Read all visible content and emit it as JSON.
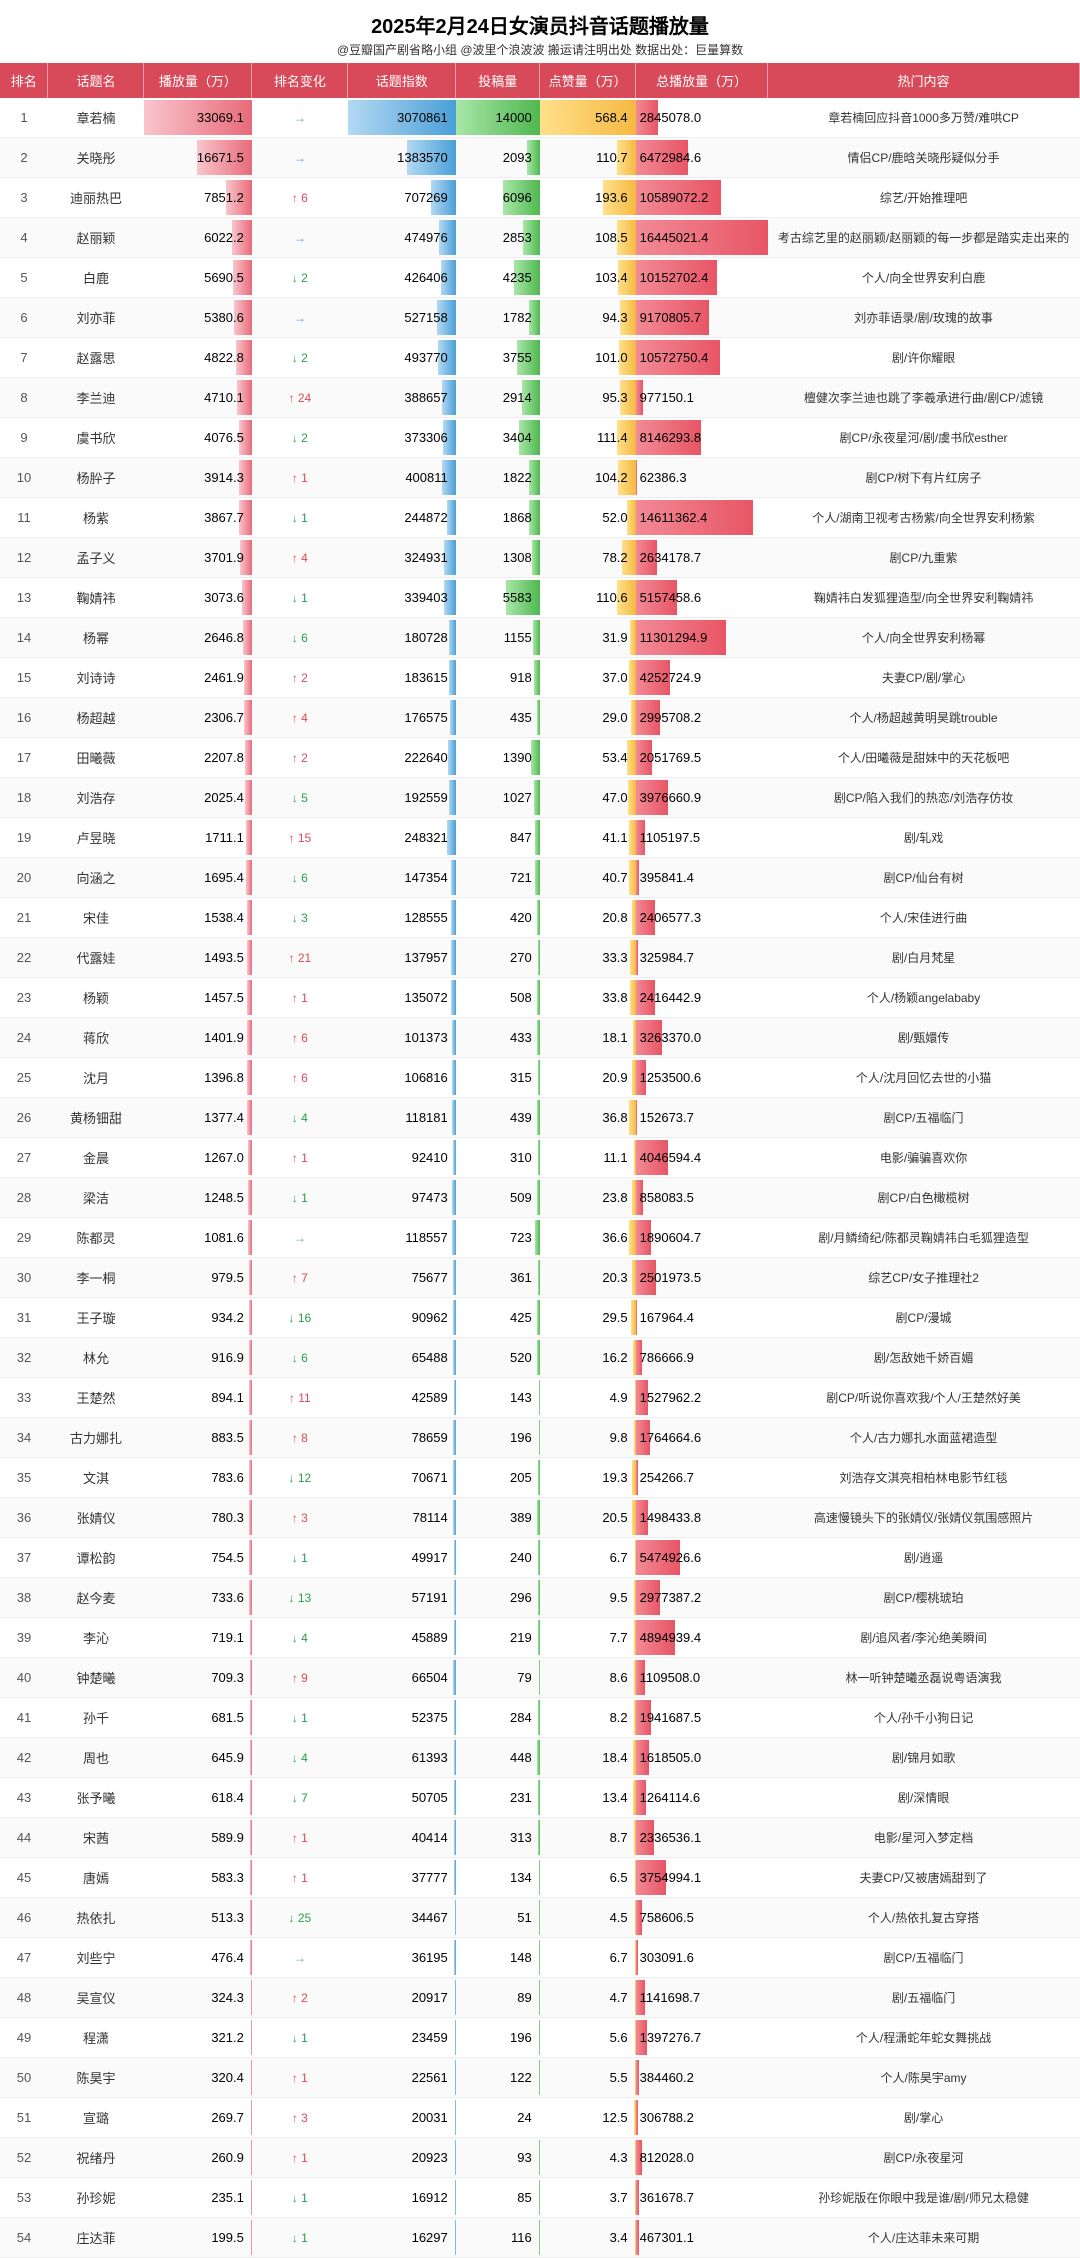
{
  "header": {
    "title": "2025年2月24日女演员抖音话题播放量",
    "subtitle": "@豆瓣国产剧省略小组 @波里个浪波波 搬运请注明出处 数据出处：巨量算数"
  },
  "columns": [
    "排名",
    "话题名",
    "播放量（万）",
    "排名变化",
    "话题指数",
    "投稿量",
    "点赞量（万）",
    "总播放量（万）",
    "热门内容"
  ],
  "styling": {
    "header_bg": "#d84a5a",
    "header_text": "#ffffff",
    "play_bar_color": "linear-gradient(90deg,#f9c5cc,#e86b7a)",
    "index_bar_color": "linear-gradient(90deg,#b3d9f2,#4a9fd8)",
    "post_bar_color": "linear-gradient(90deg,#a8e6a8,#4fb84f)",
    "like_bar_color": "linear-gradient(90deg,#ffe08a,#f5b942)",
    "total_bar_color": "linear-gradient(90deg,#f28a96,#e85565)",
    "up_color": "#d84a5a",
    "down_color": "#2e9b4f",
    "flat_color": "#5a8fd6",
    "font_size_body": 13,
    "font_size_title": 20,
    "max_play": 33069.1,
    "max_index": 3070861,
    "max_post": 14000,
    "max_like": 568.4,
    "max_total": 16445021.4
  },
  "rows": [
    {
      "rank": 1,
      "name": "章若楠",
      "play": 33069.1,
      "change": "→",
      "index": 3070861,
      "post": 14000,
      "like": 568.4,
      "total": 2845078.0,
      "hot": "章若楠回应抖音1000多万赞/难哄CP"
    },
    {
      "rank": 2,
      "name": "关晓彤",
      "play": 16671.5,
      "change": "→",
      "index": 1383570,
      "post": 2093,
      "like": 110.7,
      "total": 6472984.6,
      "hot": "情侣CP/鹿晗关晓彤疑似分手"
    },
    {
      "rank": 3,
      "name": "迪丽热巴",
      "play": 7851.2,
      "change": "↑6",
      "index": 707269,
      "post": 6096,
      "like": 193.6,
      "total": 10589072.2,
      "hot": "综艺/开始推理吧"
    },
    {
      "rank": 4,
      "name": "赵丽颖",
      "play": 6022.2,
      "change": "→",
      "index": 474976,
      "post": 2853,
      "like": 108.5,
      "total": 16445021.4,
      "hot": "考古综艺里的赵丽颖/赵丽颖的每一步都是踏实走出来的"
    },
    {
      "rank": 5,
      "name": "白鹿",
      "play": 5690.5,
      "change": "↓2",
      "index": 426406,
      "post": 4235,
      "like": 103.4,
      "total": 10152702.4,
      "hot": "个人/向全世界安利白鹿"
    },
    {
      "rank": 6,
      "name": "刘亦菲",
      "play": 5380.6,
      "change": "→",
      "index": 527158,
      "post": 1782,
      "like": 94.3,
      "total": 9170805.7,
      "hot": "刘亦菲语录/剧/玫瑰的故事"
    },
    {
      "rank": 7,
      "name": "赵露思",
      "play": 4822.8,
      "change": "↓2",
      "index": 493770,
      "post": 3755,
      "like": 101.0,
      "total": 10572750.4,
      "hot": "剧/许你耀眼"
    },
    {
      "rank": 8,
      "name": "李兰迪",
      "play": 4710.1,
      "change": "↑24",
      "index": 388657,
      "post": 2914,
      "like": 95.3,
      "total": 977150.1,
      "hot": "檀健次李兰迪也跳了李羲承进行曲/剧CP/滤镜"
    },
    {
      "rank": 9,
      "name": "虞书欣",
      "play": 4076.5,
      "change": "↓2",
      "index": 373306,
      "post": 3404,
      "like": 111.4,
      "total": 8146293.8,
      "hot": "剧CP/永夜星河/剧/虞书欣esther"
    },
    {
      "rank": 10,
      "name": "杨肸子",
      "play": 3914.3,
      "change": "↑1",
      "index": 400811,
      "post": 1822,
      "like": 104.2,
      "total": 62386.3,
      "hot": "剧CP/树下有片红房子"
    },
    {
      "rank": 11,
      "name": "杨紫",
      "play": 3867.7,
      "change": "↓1",
      "index": 244872,
      "post": 1868,
      "like": 52.0,
      "total": 14611362.4,
      "hot": "个人/湖南卫视考古杨紫/向全世界安利杨紫"
    },
    {
      "rank": 12,
      "name": "孟子义",
      "play": 3701.9,
      "change": "↑4",
      "index": 324931,
      "post": 1308,
      "like": 78.2,
      "total": 2634178.7,
      "hot": "剧CP/九重紫"
    },
    {
      "rank": 13,
      "name": "鞠婧祎",
      "play": 3073.6,
      "change": "↓1",
      "index": 339403,
      "post": 5583,
      "like": 110.6,
      "total": 5157458.6,
      "hot": "鞠婧祎白发狐狸造型/向全世界安利鞠婧祎"
    },
    {
      "rank": 14,
      "name": "杨幂",
      "play": 2646.8,
      "change": "↓6",
      "index": 180728,
      "post": 1155,
      "like": 31.9,
      "total": 11301294.9,
      "hot": "个人/向全世界安利杨幂"
    },
    {
      "rank": 15,
      "name": "刘诗诗",
      "play": 2461.9,
      "change": "↑2",
      "index": 183615,
      "post": 918,
      "like": 37.0,
      "total": 4252724.9,
      "hot": "夫妻CP/剧/掌心"
    },
    {
      "rank": 16,
      "name": "杨超越",
      "play": 2306.7,
      "change": "↑4",
      "index": 176575,
      "post": 435,
      "like": 29.0,
      "total": 2995708.2,
      "hot": "个人/杨超越黄明昊跳trouble"
    },
    {
      "rank": 17,
      "name": "田曦薇",
      "play": 2207.8,
      "change": "↑2",
      "index": 222640,
      "post": 1390,
      "like": 53.4,
      "total": 2051769.5,
      "hot": "个人/田曦薇是甜妹中的天花板吧"
    },
    {
      "rank": 18,
      "name": "刘浩存",
      "play": 2025.4,
      "change": "↓5",
      "index": 192559,
      "post": 1027,
      "like": 47.0,
      "total": 3976660.9,
      "hot": "剧CP/陷入我们的热恋/刘浩存仿妆"
    },
    {
      "rank": 19,
      "name": "卢昱晓",
      "play": 1711.1,
      "change": "↑15",
      "index": 248321,
      "post": 847,
      "like": 41.1,
      "total": 1105197.5,
      "hot": "剧/轧戏"
    },
    {
      "rank": 20,
      "name": "向涵之",
      "play": 1695.4,
      "change": "↓6",
      "index": 147354,
      "post": 721,
      "like": 40.7,
      "total": 395841.4,
      "hot": "剧CP/仙台有树"
    },
    {
      "rank": 21,
      "name": "宋佳",
      "play": 1538.4,
      "change": "↓3",
      "index": 128555,
      "post": 420,
      "like": 20.8,
      "total": 2406577.3,
      "hot": "个人/宋佳进行曲"
    },
    {
      "rank": 22,
      "name": "代露娃",
      "play": 1493.5,
      "change": "↑21",
      "index": 137957,
      "post": 270,
      "like": 33.3,
      "total": 325984.7,
      "hot": "剧/白月梵星"
    },
    {
      "rank": 23,
      "name": "杨颖",
      "play": 1457.5,
      "change": "↑1",
      "index": 135072,
      "post": 508,
      "like": 33.8,
      "total": 2416442.9,
      "hot": "个人/杨颖angelababy"
    },
    {
      "rank": 24,
      "name": "蒋欣",
      "play": 1401.9,
      "change": "↑6",
      "index": 101373,
      "post": 433,
      "like": 18.1,
      "total": 3263370.0,
      "hot": "剧/甄嬛传"
    },
    {
      "rank": 25,
      "name": "沈月",
      "play": 1396.8,
      "change": "↑6",
      "index": 106816,
      "post": 315,
      "like": 20.9,
      "total": 1253500.6,
      "hot": "个人/沈月回忆去世的小猫"
    },
    {
      "rank": 26,
      "name": "黄杨钿甜",
      "play": 1377.4,
      "change": "↓4",
      "index": 118181,
      "post": 439,
      "like": 36.8,
      "total": 152673.7,
      "hot": "剧CP/五福临门"
    },
    {
      "rank": 27,
      "name": "金晨",
      "play": 1267.0,
      "change": "↑1",
      "index": 92410,
      "post": 310,
      "like": 11.1,
      "total": 4046594.4,
      "hot": "电影/骗骗喜欢你"
    },
    {
      "rank": 28,
      "name": "梁洁",
      "play": 1248.5,
      "change": "↓1",
      "index": 97473,
      "post": 509,
      "like": 23.8,
      "total": 858083.5,
      "hot": "剧CP/白色橄榄树"
    },
    {
      "rank": 29,
      "name": "陈都灵",
      "play": 1081.6,
      "change": "→",
      "index": 118557,
      "post": 723,
      "like": 36.6,
      "total": 1890604.7,
      "hot": "剧/月鳞绮纪/陈都灵鞠婧祎白毛狐狸造型"
    },
    {
      "rank": 30,
      "name": "李一桐",
      "play": 979.5,
      "change": "↑7",
      "index": 75677,
      "post": 361,
      "like": 20.3,
      "total": 2501973.5,
      "hot": "综艺CP/女子推理社2"
    },
    {
      "rank": 31,
      "name": "王子璇",
      "play": 934.2,
      "change": "↓16",
      "index": 90962,
      "post": 425,
      "like": 29.5,
      "total": 167964.4,
      "hot": "剧CP/漫城"
    },
    {
      "rank": 32,
      "name": "林允",
      "play": 916.9,
      "change": "↓6",
      "index": 65488,
      "post": 520,
      "like": 16.2,
      "total": 786666.9,
      "hot": "剧/怎敌她千娇百媚"
    },
    {
      "rank": 33,
      "name": "王楚然",
      "play": 894.1,
      "change": "↑11",
      "index": 42589,
      "post": 143,
      "like": 4.9,
      "total": 1527962.2,
      "hot": "剧CP/听说你喜欢我/个人/王楚然好美"
    },
    {
      "rank": 34,
      "name": "古力娜扎",
      "play": 883.5,
      "change": "↑8",
      "index": 78659,
      "post": 196,
      "like": 9.8,
      "total": 1764664.6,
      "hot": "个人/古力娜扎水面蓝裙造型"
    },
    {
      "rank": 35,
      "name": "文淇",
      "play": 783.6,
      "change": "↓12",
      "index": 70671,
      "post": 205,
      "like": 19.3,
      "total": 254266.7,
      "hot": "刘浩存文淇亮相柏林电影节红毯"
    },
    {
      "rank": 36,
      "name": "张婧仪",
      "play": 780.3,
      "change": "↑3",
      "index": 78114,
      "post": 389,
      "like": 20.5,
      "total": 1498433.8,
      "hot": "高速慢镜头下的张婧仪/张婧仪氛围感照片"
    },
    {
      "rank": 37,
      "name": "谭松韵",
      "play": 754.5,
      "change": "↓1",
      "index": 49917,
      "post": 240,
      "like": 6.7,
      "total": 5474926.6,
      "hot": "剧/逍遥"
    },
    {
      "rank": 38,
      "name": "赵今麦",
      "play": 733.6,
      "change": "↓13",
      "index": 57191,
      "post": 296,
      "like": 9.5,
      "total": 2977387.2,
      "hot": "剧CP/樱桃琥珀"
    },
    {
      "rank": 39,
      "name": "李沁",
      "play": 719.1,
      "change": "↓4",
      "index": 45889,
      "post": 219,
      "like": 7.7,
      "total": 4894939.4,
      "hot": "剧/追风者/李沁绝美瞬间"
    },
    {
      "rank": 40,
      "name": "钟楚曦",
      "play": 709.3,
      "change": "↑9",
      "index": 66504,
      "post": 79,
      "like": 8.6,
      "total": 1109508.0,
      "hot": "林一听钟楚曦丞磊说粤语演我"
    },
    {
      "rank": 41,
      "name": "孙千",
      "play": 681.5,
      "change": "↓1",
      "index": 52375,
      "post": 284,
      "like": 8.2,
      "total": 1941687.5,
      "hot": "个人/孙千小狗日记"
    },
    {
      "rank": 42,
      "name": "周也",
      "play": 645.9,
      "change": "↓4",
      "index": 61393,
      "post": 448,
      "like": 18.4,
      "total": 1618505.0,
      "hot": "剧/锦月如歌"
    },
    {
      "rank": 43,
      "name": "张予曦",
      "play": 618.4,
      "change": "↓7",
      "index": 50705,
      "post": 231,
      "like": 13.4,
      "total": 1264114.6,
      "hot": "剧/深情眼"
    },
    {
      "rank": 44,
      "name": "宋茜",
      "play": 589.9,
      "change": "↑1",
      "index": 40414,
      "post": 313,
      "like": 8.7,
      "total": 2336536.1,
      "hot": "电影/星河入梦定档"
    },
    {
      "rank": 45,
      "name": "唐嫣",
      "play": 583.3,
      "change": "↑1",
      "index": 37777,
      "post": 134,
      "like": 6.5,
      "total": 3754994.1,
      "hot": "夫妻CP/又被唐嫣甜到了"
    },
    {
      "rank": 46,
      "name": "热依扎",
      "play": 513.3,
      "change": "↓25",
      "index": 34467,
      "post": 51,
      "like": 4.5,
      "total": 758606.5,
      "hot": "个人/热依扎复古穿搭"
    },
    {
      "rank": 47,
      "name": "刘些宁",
      "play": 476.4,
      "change": "→",
      "index": 36195,
      "post": 148,
      "like": 6.7,
      "total": 303091.6,
      "hot": "剧CP/五福临门"
    },
    {
      "rank": 48,
      "name": "吴宣仪",
      "play": 324.3,
      "change": "↑2",
      "index": 20917,
      "post": 89,
      "like": 4.7,
      "total": 1141698.7,
      "hot": "剧/五福临门"
    },
    {
      "rank": 49,
      "name": "程潇",
      "play": 321.2,
      "change": "↓1",
      "index": 23459,
      "post": 196,
      "like": 5.6,
      "total": 1397276.7,
      "hot": "个人/程潇蛇年蛇女舞挑战"
    },
    {
      "rank": 50,
      "name": "陈昊宇",
      "play": 320.4,
      "change": "↑1",
      "index": 22561,
      "post": 122,
      "like": 5.5,
      "total": 384460.2,
      "hot": "个人/陈昊宇amy"
    },
    {
      "rank": 51,
      "name": "宣璐",
      "play": 269.7,
      "change": "↑3",
      "index": 20031,
      "post": 24,
      "like": 12.5,
      "total": 306788.2,
      "hot": "剧/掌心"
    },
    {
      "rank": 52,
      "name": "祝绪丹",
      "play": 260.9,
      "change": "↑1",
      "index": 20923,
      "post": 93,
      "like": 4.3,
      "total": 812028.0,
      "hot": "剧CP/永夜星河"
    },
    {
      "rank": 53,
      "name": "孙珍妮",
      "play": 235.1,
      "change": "↓1",
      "index": 16912,
      "post": 85,
      "like": 3.7,
      "total": 361678.7,
      "hot": "孙珍妮版在你眼中我是谁/剧/师兄太稳健"
    },
    {
      "rank": 54,
      "name": "庄达菲",
      "play": 199.5,
      "change": "↓1",
      "index": 16297,
      "post": 116,
      "like": 3.4,
      "total": 467301.1,
      "hot": "个人/庄达菲未来可期"
    }
  ]
}
